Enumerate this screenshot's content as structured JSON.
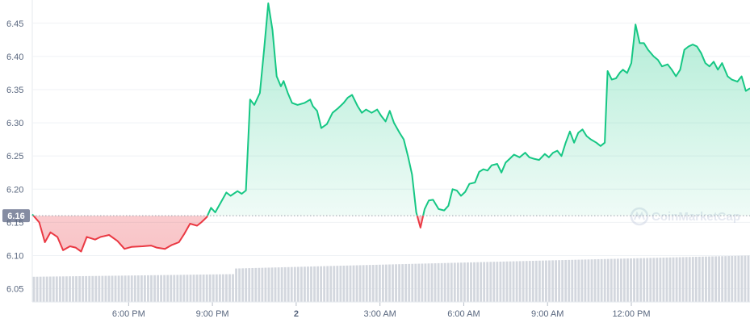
{
  "chart_data": {
    "type": "area",
    "title": "",
    "xlabel": "",
    "ylabel": "",
    "ylim": [
      6.03,
      6.485
    ],
    "y_ticks": [
      "6.45",
      "6.40",
      "6.35",
      "6.30",
      "6.25",
      "6.20",
      "6.15",
      "6.10",
      "6.05"
    ],
    "x_ticks": [
      {
        "label": "6:00 PM",
        "hour": 18,
        "bold": false
      },
      {
        "label": "9:00 PM",
        "hour": 21,
        "bold": false
      },
      {
        "label": "2",
        "hour": 24,
        "bold": true
      },
      {
        "label": "3:00 AM",
        "hour": 27,
        "bold": false
      },
      {
        "label": "6:00 AM",
        "hour": 30,
        "bold": false
      },
      {
        "label": "9:00 AM",
        "hour": 33,
        "bold": false
      },
      {
        "label": "12:00 PM",
        "hour": 36,
        "bold": false
      }
    ],
    "xlim_hours": [
      14.55,
      38.95
    ],
    "reference_price": 6.16,
    "reference_label": "6.16",
    "colors": {
      "up": "#16c784",
      "down": "#ea3943",
      "volume": "#d3d7de",
      "reference": "#999fab",
      "grid": "#eff2f5"
    },
    "price": [
      [
        14.55,
        6.162
      ],
      [
        14.8,
        6.15
      ],
      [
        15.0,
        6.12
      ],
      [
        15.2,
        6.135
      ],
      [
        15.45,
        6.128
      ],
      [
        15.65,
        6.108
      ],
      [
        15.9,
        6.114
      ],
      [
        16.1,
        6.112
      ],
      [
        16.3,
        6.106
      ],
      [
        16.5,
        6.128
      ],
      [
        16.8,
        6.124
      ],
      [
        17.0,
        6.128
      ],
      [
        17.3,
        6.131
      ],
      [
        17.6,
        6.122
      ],
      [
        17.85,
        6.11
      ],
      [
        18.1,
        6.113
      ],
      [
        18.5,
        6.114
      ],
      [
        18.8,
        6.115
      ],
      [
        19.0,
        6.112
      ],
      [
        19.3,
        6.11
      ],
      [
        19.55,
        6.116
      ],
      [
        19.8,
        6.12
      ],
      [
        20.0,
        6.133
      ],
      [
        20.2,
        6.148
      ],
      [
        20.45,
        6.145
      ],
      [
        20.6,
        6.15
      ],
      [
        20.8,
        6.158
      ],
      [
        20.95,
        6.172
      ],
      [
        21.1,
        6.165
      ],
      [
        21.3,
        6.18
      ],
      [
        21.5,
        6.195
      ],
      [
        21.65,
        6.19
      ],
      [
        21.9,
        6.197
      ],
      [
        22.05,
        6.193
      ],
      [
        22.2,
        6.198
      ],
      [
        22.35,
        6.335
      ],
      [
        22.5,
        6.327
      ],
      [
        22.7,
        6.345
      ],
      [
        22.85,
        6.41
      ],
      [
        23.0,
        6.48
      ],
      [
        23.15,
        6.44
      ],
      [
        23.3,
        6.37
      ],
      [
        23.45,
        6.355
      ],
      [
        23.55,
        6.363
      ],
      [
        23.7,
        6.345
      ],
      [
        23.85,
        6.33
      ],
      [
        24.05,
        6.327
      ],
      [
        24.3,
        6.33
      ],
      [
        24.5,
        6.335
      ],
      [
        24.6,
        6.325
      ],
      [
        24.75,
        6.318
      ],
      [
        24.9,
        6.292
      ],
      [
        25.1,
        6.298
      ],
      [
        25.3,
        6.315
      ],
      [
        25.5,
        6.322
      ],
      [
        25.7,
        6.33
      ],
      [
        25.85,
        6.338
      ],
      [
        26.0,
        6.342
      ],
      [
        26.2,
        6.325
      ],
      [
        26.35,
        6.315
      ],
      [
        26.5,
        6.32
      ],
      [
        26.7,
        6.315
      ],
      [
        26.9,
        6.32
      ],
      [
        27.05,
        6.31
      ],
      [
        27.2,
        6.302
      ],
      [
        27.35,
        6.318
      ],
      [
        27.5,
        6.3
      ],
      [
        27.7,
        6.285
      ],
      [
        27.85,
        6.275
      ],
      [
        28.0,
        6.25
      ],
      [
        28.15,
        6.222
      ],
      [
        28.3,
        6.165
      ],
      [
        28.45,
        6.142
      ],
      [
        28.6,
        6.17
      ],
      [
        28.75,
        6.183
      ],
      [
        28.9,
        6.184
      ],
      [
        29.1,
        6.17
      ],
      [
        29.3,
        6.168
      ],
      [
        29.45,
        6.175
      ],
      [
        29.6,
        6.2
      ],
      [
        29.75,
        6.198
      ],
      [
        29.9,
        6.19
      ],
      [
        30.05,
        6.196
      ],
      [
        30.2,
        6.208
      ],
      [
        30.4,
        6.21
      ],
      [
        30.55,
        6.226
      ],
      [
        30.7,
        6.23
      ],
      [
        30.85,
        6.228
      ],
      [
        31.0,
        6.236
      ],
      [
        31.2,
        6.238
      ],
      [
        31.35,
        6.225
      ],
      [
        31.5,
        6.24
      ],
      [
        31.65,
        6.246
      ],
      [
        31.8,
        6.252
      ],
      [
        32.0,
        6.248
      ],
      [
        32.2,
        6.255
      ],
      [
        32.35,
        6.248
      ],
      [
        32.5,
        6.246
      ],
      [
        32.7,
        6.244
      ],
      [
        32.9,
        6.253
      ],
      [
        33.05,
        6.248
      ],
      [
        33.2,
        6.255
      ],
      [
        33.35,
        6.258
      ],
      [
        33.5,
        6.25
      ],
      [
        33.65,
        6.27
      ],
      [
        33.8,
        6.287
      ],
      [
        33.95,
        6.27
      ],
      [
        34.1,
        6.285
      ],
      [
        34.25,
        6.29
      ],
      [
        34.4,
        6.28
      ],
      [
        34.55,
        6.275
      ],
      [
        34.75,
        6.27
      ],
      [
        34.9,
        6.265
      ],
      [
        35.05,
        6.27
      ],
      [
        35.15,
        6.378
      ],
      [
        35.3,
        6.365
      ],
      [
        35.45,
        6.367
      ],
      [
        35.6,
        6.376
      ],
      [
        35.7,
        6.38
      ],
      [
        35.85,
        6.375
      ],
      [
        36.0,
        6.39
      ],
      [
        36.15,
        6.448
      ],
      [
        36.3,
        6.42
      ],
      [
        36.45,
        6.42
      ],
      [
        36.6,
        6.41
      ],
      [
        36.8,
        6.4
      ],
      [
        36.95,
        6.395
      ],
      [
        37.1,
        6.385
      ],
      [
        37.3,
        6.388
      ],
      [
        37.45,
        6.38
      ],
      [
        37.6,
        6.37
      ],
      [
        37.75,
        6.38
      ],
      [
        37.9,
        6.41
      ],
      [
        38.05,
        6.415
      ],
      [
        38.2,
        6.418
      ],
      [
        38.35,
        6.415
      ],
      [
        38.5,
        6.405
      ],
      [
        38.65,
        6.39
      ],
      [
        38.8,
        6.385
      ],
      [
        38.95,
        6.392
      ],
      [
        39.1,
        6.38
      ],
      [
        39.25,
        6.39
      ],
      [
        39.45,
        6.37
      ],
      [
        39.6,
        6.365
      ],
      [
        39.8,
        6.362
      ],
      [
        39.95,
        6.37
      ],
      [
        40.1,
        6.348
      ],
      [
        40.25,
        6.352
      ]
    ],
    "volume_start": 6.068,
    "volume_end": 6.1
  }
}
